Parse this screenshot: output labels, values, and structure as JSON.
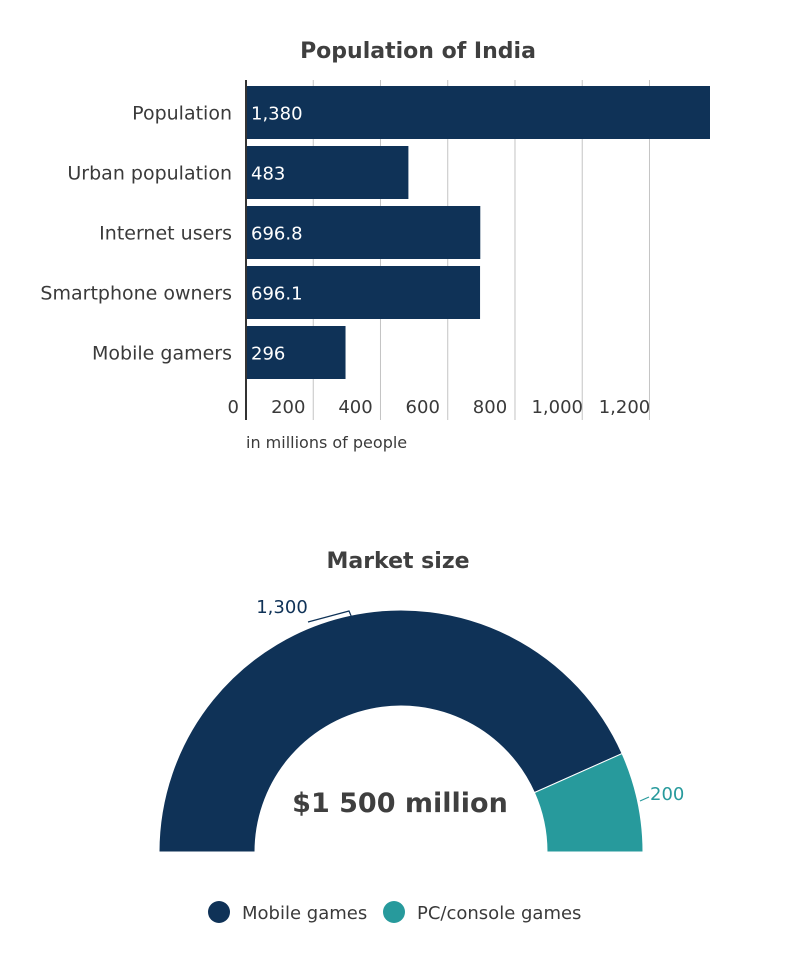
{
  "chart_data": [
    {
      "type": "bar",
      "orientation": "horizontal",
      "title": "Population of India",
      "categories": [
        "Population",
        "Urban population",
        "Internet users",
        "Smartphone owners",
        "Mobile gamers"
      ],
      "values": [
        1380,
        483,
        696.8,
        696.1,
        296
      ],
      "value_labels": [
        "1,380",
        "483",
        "696.8",
        "696.1",
        "296"
      ],
      "xlim": [
        0,
        1380
      ],
      "xticks": [
        0,
        200,
        400,
        600,
        800,
        1000,
        1200
      ],
      "xtick_labels": [
        "0",
        "200",
        "400",
        "600",
        "800",
        "1,000",
        "1,200"
      ],
      "xlabel": "in millions of people",
      "grid": true,
      "color": "#0f3257"
    },
    {
      "type": "pie",
      "variant": "semi-donut",
      "title": "Market size",
      "center_label": "$1 500 million",
      "categories": [
        "Mobile games",
        "PC/console games"
      ],
      "values": [
        1300,
        200
      ],
      "value_labels": [
        "1,300",
        "200"
      ],
      "colors": [
        "#0f3257",
        "#279a9c"
      ],
      "legend_position": "bottom"
    }
  ]
}
